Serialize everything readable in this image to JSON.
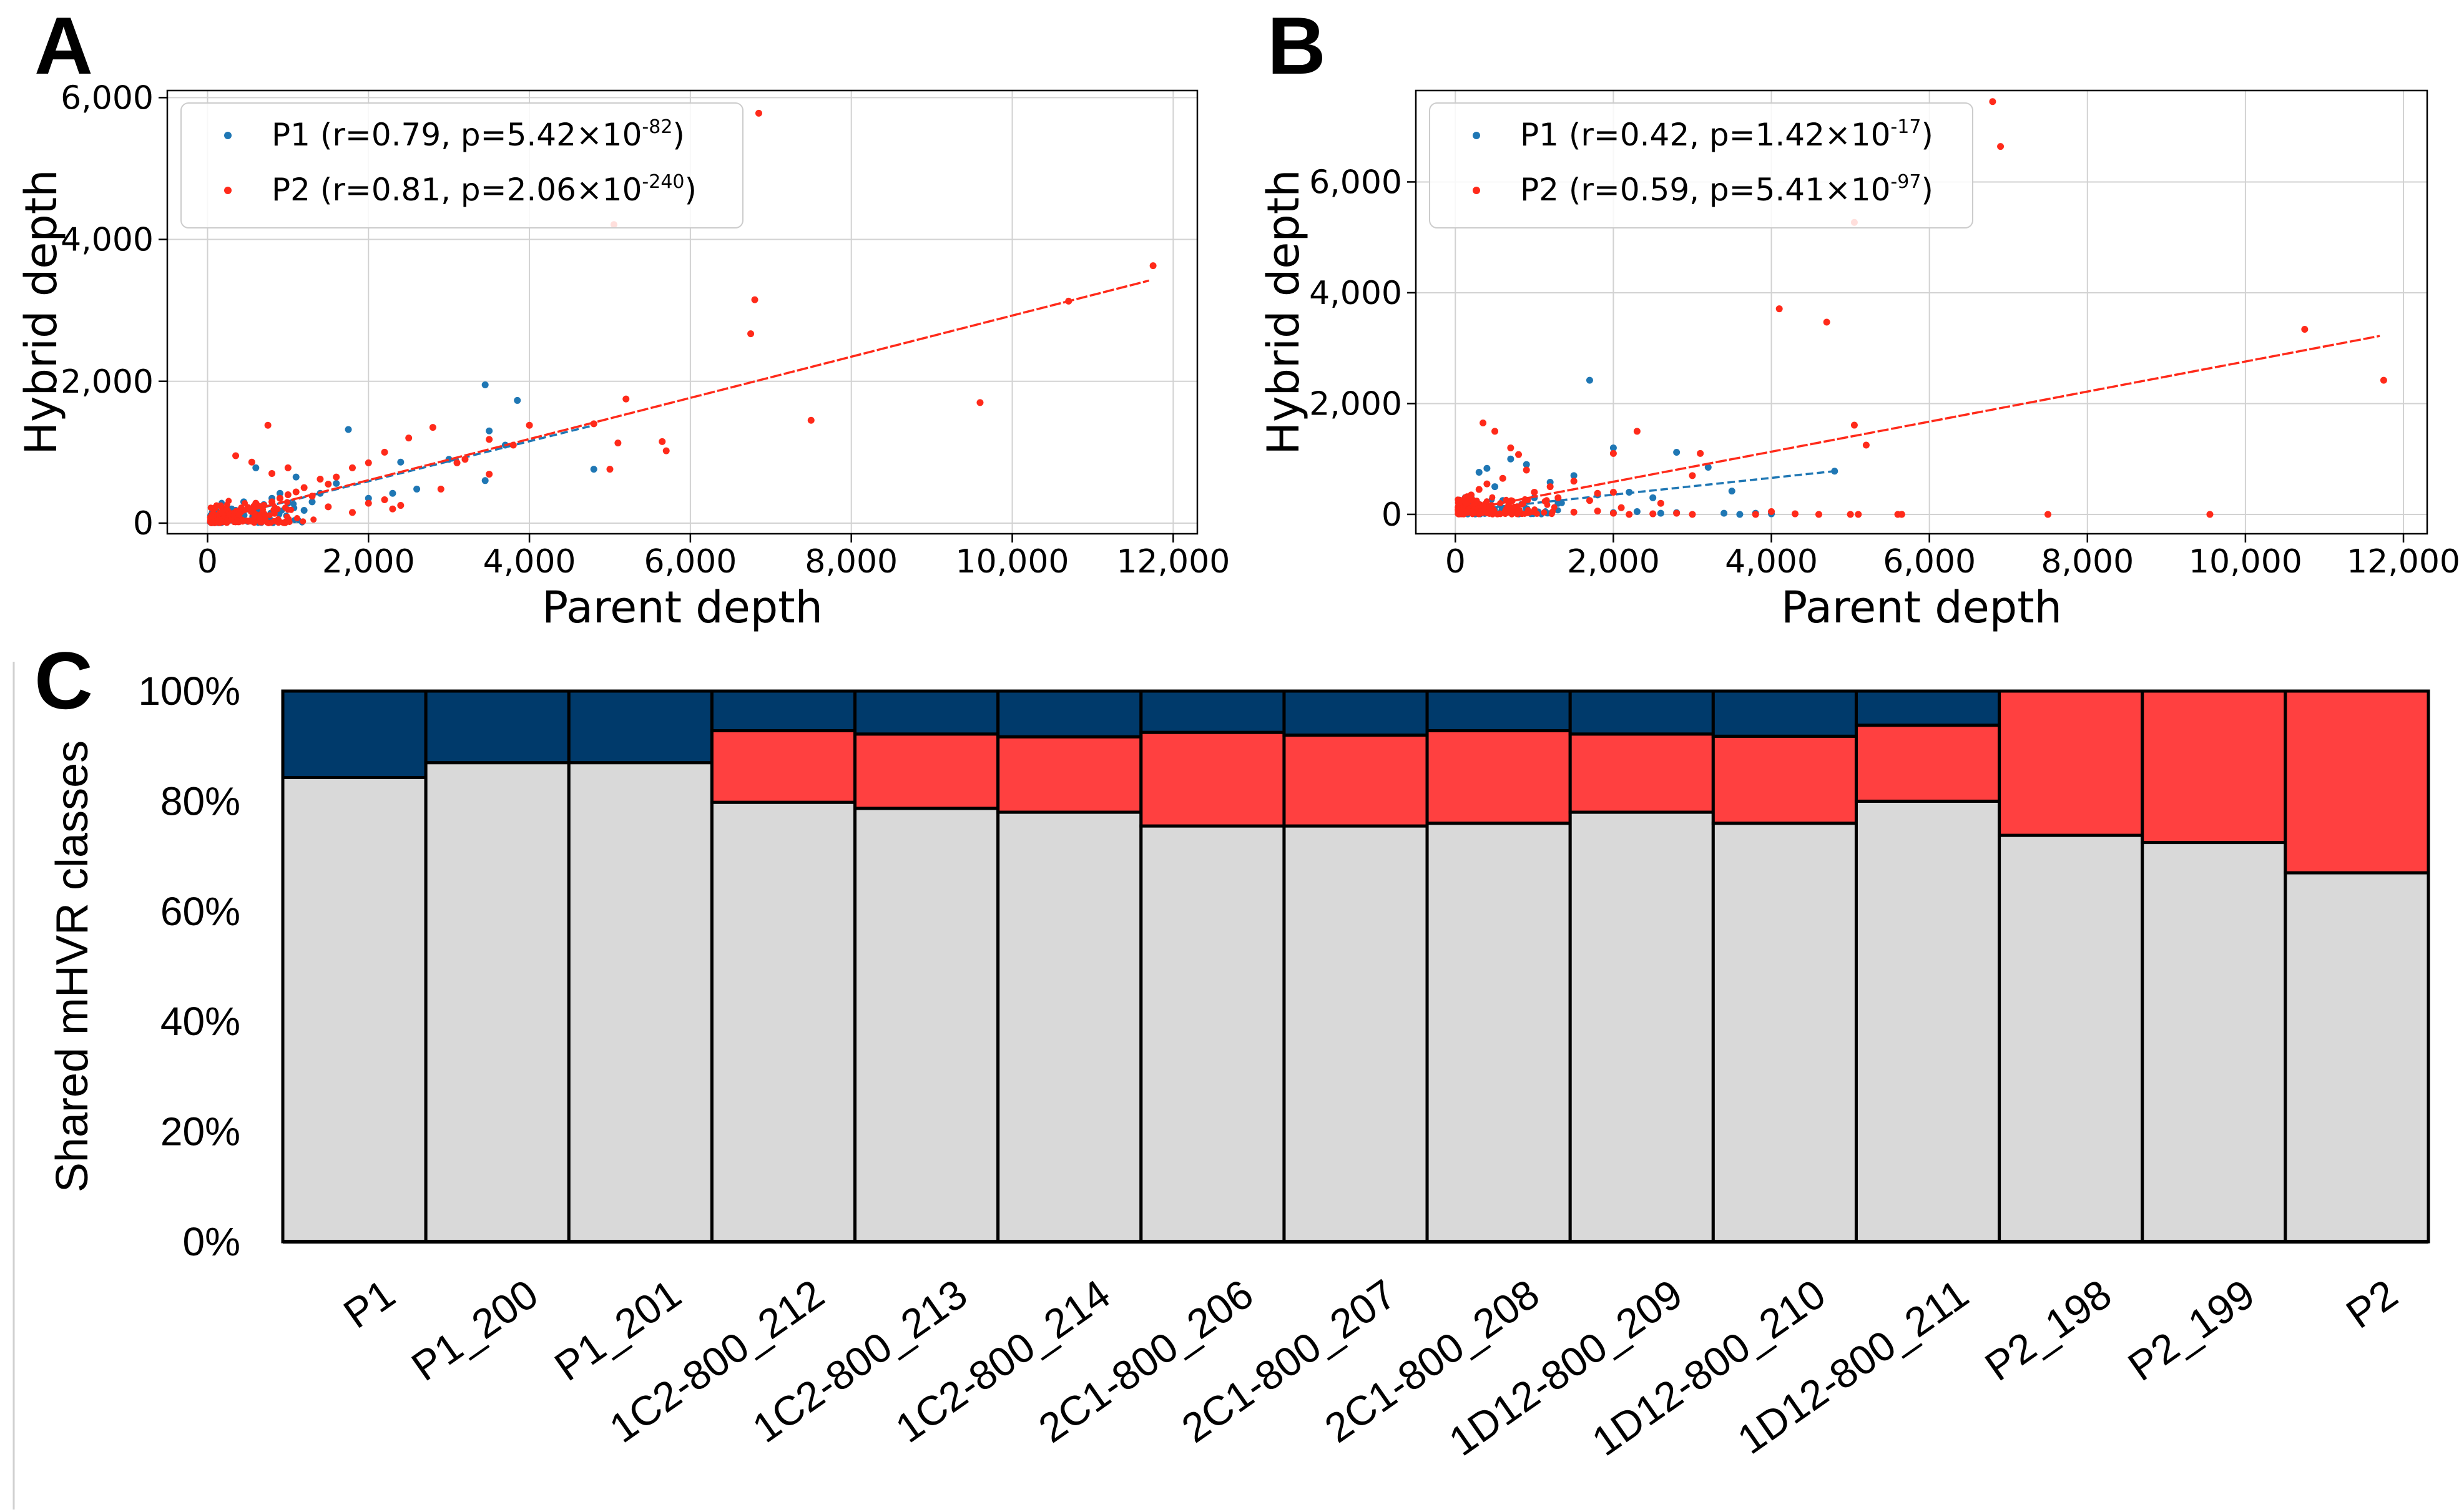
{
  "colors": {
    "p1": "#1f77b4",
    "p2": "#ff2a1a",
    "dark": "#003a6b",
    "red": "#ff4040",
    "gray": "#d9d9d9"
  },
  "panels": {
    "A": {
      "letter": "A"
    },
    "B": {
      "letter": "B"
    },
    "C": {
      "letter": "C"
    }
  },
  "chart_data": [
    {
      "panel": "A",
      "type": "scatter",
      "xlabel": "Parent depth",
      "ylabel": "Hybrid depth",
      "xlim": [
        -500,
        12300
      ],
      "ylim": [
        -150,
        6100
      ],
      "xticks": [
        0,
        2000,
        4000,
        6000,
        8000,
        10000,
        12000
      ],
      "xtick_labels": [
        "0",
        "2,000",
        "4,000",
        "6,000",
        "8,000",
        "10,000",
        "12,000"
      ],
      "yticks": [
        0,
        2000,
        4000,
        6000
      ],
      "ytick_labels": [
        "0",
        "2,000",
        "4,000",
        "6,000"
      ],
      "grid": true,
      "legend_position": "top-left",
      "series": [
        {
          "name": "P1",
          "legend": {
            "main": "P1 (r=0.79, p=5.42×10",
            "exp": "-82",
            "tail": ")"
          },
          "color": "#1f77b4",
          "fit": {
            "x0": 50,
            "x1": 4800,
            "y0": 40,
            "y1": 1380,
            "style": "dashed"
          },
          "points": [
            [
              3450,
              1950
            ],
            [
              3850,
              1730
            ],
            [
              1750,
              1320
            ],
            [
              3450,
              600
            ],
            [
              4800,
              760
            ],
            [
              2600,
              480
            ],
            [
              2000,
              350
            ],
            [
              1300,
              300
            ],
            [
              900,
              420
            ],
            [
              700,
              260
            ],
            [
              500,
              220
            ],
            [
              1200,
              180
            ],
            [
              3700,
              1100
            ],
            [
              3500,
              1300
            ],
            [
              2400,
              860
            ],
            [
              1600,
              560
            ],
            [
              1100,
              650
            ],
            [
              600,
              780
            ],
            [
              450,
              300
            ],
            [
              300,
              200
            ],
            [
              200,
              150
            ],
            [
              150,
              100
            ],
            [
              100,
              80
            ],
            [
              800,
              350
            ],
            [
              1000,
              280
            ],
            [
              1400,
              420
            ],
            [
              2300,
              420
            ],
            [
              3000,
              900
            ],
            [
              250,
              120
            ],
            [
              350,
              180
            ]
          ]
        },
        {
          "name": "P2",
          "legend": {
            "main": "P2 (r=0.81, p=2.06×10",
            "exp": "-240",
            "tail": ")"
          },
          "color": "#ff2a1a",
          "fit": {
            "x0": 50,
            "x1": 11700,
            "y0": 40,
            "y1": 3420,
            "style": "solid-dashed"
          },
          "points": [
            [
              6850,
              5780
            ],
            [
              5050,
              4210
            ],
            [
              11750,
              3630
            ],
            [
              6750,
              2670
            ],
            [
              7500,
              1450
            ],
            [
              9600,
              1700
            ],
            [
              5200,
              1750
            ],
            [
              5650,
              1150
            ],
            [
              5700,
              1020
            ],
            [
              5100,
              1130
            ],
            [
              5000,
              760
            ],
            [
              4000,
              1380
            ],
            [
              3800,
              1100
            ],
            [
              3500,
              1180
            ],
            [
              3200,
              900
            ],
            [
              2800,
              1350
            ],
            [
              2500,
              1200
            ],
            [
              2200,
              1000
            ],
            [
              2000,
              850
            ],
            [
              1800,
              780
            ],
            [
              1600,
              650
            ],
            [
              1500,
              550
            ],
            [
              1400,
              620
            ],
            [
              1300,
              380
            ],
            [
              1200,
              500
            ],
            [
              1100,
              440
            ],
            [
              1000,
              400
            ],
            [
              900,
              350
            ],
            [
              800,
              300
            ],
            [
              750,
              1380
            ],
            [
              700,
              250
            ],
            [
              600,
              280
            ],
            [
              550,
              860
            ],
            [
              500,
              220
            ],
            [
              400,
              180
            ],
            [
              350,
              950
            ],
            [
              300,
              130
            ],
            [
              250,
              150
            ],
            [
              200,
              120
            ],
            [
              150,
              100
            ],
            [
              100,
              80
            ],
            [
              800,
              700
            ],
            [
              1000,
              780
            ],
            [
              2200,
              330
            ],
            [
              2400,
              250
            ],
            [
              3500,
              690
            ],
            [
              4800,
              1400
            ],
            [
              6800,
              3150
            ],
            [
              2300,
              200
            ],
            [
              2000,
              280
            ],
            [
              1800,
              150
            ],
            [
              1500,
              230
            ],
            [
              2900,
              480
            ],
            [
              3100,
              850
            ],
            [
              10700,
              3130
            ]
          ]
        }
      ]
    },
    {
      "panel": "B",
      "type": "scatter",
      "xlabel": "Parent depth",
      "ylabel": "Hybrid depth",
      "xlim": [
        -500,
        12300
      ],
      "ylim": [
        -350,
        7650
      ],
      "xticks": [
        0,
        2000,
        4000,
        6000,
        8000,
        10000,
        12000
      ],
      "xtick_labels": [
        "0",
        "2,000",
        "4,000",
        "6,000",
        "8,000",
        "10,000",
        "12,000"
      ],
      "yticks": [
        0,
        2000,
        4000,
        6000
      ],
      "ytick_labels": [
        "0",
        "2,000",
        "4,000",
        "6,000"
      ],
      "grid": true,
      "legend_position": "top-left",
      "series": [
        {
          "name": "P1",
          "legend": {
            "main": "P1 (r=0.42, p=1.42×10",
            "exp": "-17",
            "tail": ")"
          },
          "color": "#1f77b4",
          "fit": {
            "x0": 50,
            "x1": 4800,
            "y0": 60,
            "y1": 780,
            "style": "dashed"
          },
          "points": [
            [
              1700,
              2420
            ],
            [
              2000,
              1200
            ],
            [
              2800,
              1120
            ],
            [
              3200,
              850
            ],
            [
              3500,
              420
            ],
            [
              4800,
              780
            ],
            [
              1500,
              700
            ],
            [
              1200,
              580
            ],
            [
              900,
              900
            ],
            [
              700,
              1000
            ],
            [
              400,
              830
            ],
            [
              300,
              760
            ],
            [
              2200,
              400
            ],
            [
              2500,
              300
            ],
            [
              1000,
              300
            ],
            [
              600,
              250
            ],
            [
              3600,
              0
            ],
            [
              3800,
              20
            ],
            [
              4000,
              10
            ],
            [
              3400,
              20
            ],
            [
              2800,
              30
            ],
            [
              500,
              500
            ],
            [
              200,
              300
            ],
            [
              150,
              150
            ],
            [
              100,
              100
            ],
            [
              1300,
              200
            ],
            [
              1800,
              350
            ],
            [
              2000,
              30
            ],
            [
              2300,
              50
            ],
            [
              2600,
              20
            ]
          ]
        },
        {
          "name": "P2",
          "legend": {
            "main": "P2 (r=0.59, p=5.41×10",
            "exp": "-97",
            "tail": ")"
          },
          "color": "#ff2a1a",
          "fit": {
            "x0": 50,
            "x1": 11700,
            "y0": 60,
            "y1": 3220,
            "style": "solid-dashed"
          },
          "points": [
            [
              6800,
              7450
            ],
            [
              6900,
              6640
            ],
            [
              5050,
              5270
            ],
            [
              4100,
              3710
            ],
            [
              4700,
              3470
            ],
            [
              5050,
              1610
            ],
            [
              5200,
              1250
            ],
            [
              10750,
              3340
            ],
            [
              11750,
              2420
            ],
            [
              2300,
              1500
            ],
            [
              2000,
              1100
            ],
            [
              3100,
              1100
            ],
            [
              3000,
              700
            ],
            [
              2000,
              400
            ],
            [
              1800,
              380
            ],
            [
              1500,
              600
            ],
            [
              1200,
              500
            ],
            [
              1000,
              400
            ],
            [
              350,
              1650
            ],
            [
              500,
              1500
            ],
            [
              700,
              1200
            ],
            [
              800,
              1080
            ],
            [
              900,
              800
            ],
            [
              600,
              650
            ],
            [
              400,
              550
            ],
            [
              300,
              450
            ],
            [
              200,
              350
            ],
            [
              150,
              250
            ],
            [
              100,
              200
            ],
            [
              5000,
              0
            ],
            [
              5100,
              0
            ],
            [
              5600,
              0
            ],
            [
              5650,
              0
            ],
            [
              7500,
              0
            ],
            [
              9550,
              0
            ],
            [
              3800,
              0
            ],
            [
              4300,
              10
            ],
            [
              4600,
              0
            ],
            [
              3000,
              0
            ],
            [
              2800,
              20
            ],
            [
              2500,
              10
            ],
            [
              2200,
              0
            ],
            [
              2100,
              120
            ],
            [
              4000,
              50
            ],
            [
              2600,
              200
            ],
            [
              1700,
              250
            ],
            [
              1300,
              300
            ],
            [
              2000,
              20
            ],
            [
              1800,
              60
            ],
            [
              1500,
              40
            ]
          ]
        }
      ]
    },
    {
      "panel": "C",
      "type": "bar",
      "stacked": true,
      "ylabel": "Shared mHVR classes",
      "ylim": [
        0,
        100
      ],
      "yticks": [
        0,
        20,
        40,
        60,
        80,
        100
      ],
      "ytick_labels": [
        "0%",
        "20%",
        "40%",
        "60%",
        "80%",
        "100%"
      ],
      "categories": [
        "P1",
        "P1_200",
        "P1_201",
        "1C2-800_212",
        "1C2-800_213",
        "1C2-800_214",
        "2C1-800_206",
        "2C1-800_207",
        "2C1-800_208",
        "1D12-800_209",
        "1D12-800_210",
        "1D12-800_211",
        "P2_198",
        "P2_199",
        "P2"
      ],
      "series": [
        {
          "name": "gray",
          "color": "#d9d9d9",
          "values": [
            84.3,
            87.0,
            87.0,
            79.8,
            78.7,
            78.0,
            75.5,
            75.5,
            76.0,
            78.0,
            76.0,
            80.0,
            73.8,
            72.5,
            67.0
          ]
        },
        {
          "name": "red",
          "color": "#ff4040",
          "values": [
            0,
            0,
            0,
            13.0,
            13.5,
            13.7,
            17.0,
            16.5,
            16.8,
            14.2,
            15.8,
            13.8,
            26.2,
            27.5,
            33.0
          ]
        },
        {
          "name": "dark",
          "color": "#003a6b",
          "values": [
            15.7,
            13.0,
            13.0,
            7.2,
            7.8,
            8.3,
            7.5,
            8.0,
            7.2,
            7.8,
            8.2,
            6.2,
            0,
            0,
            0
          ]
        }
      ]
    }
  ]
}
